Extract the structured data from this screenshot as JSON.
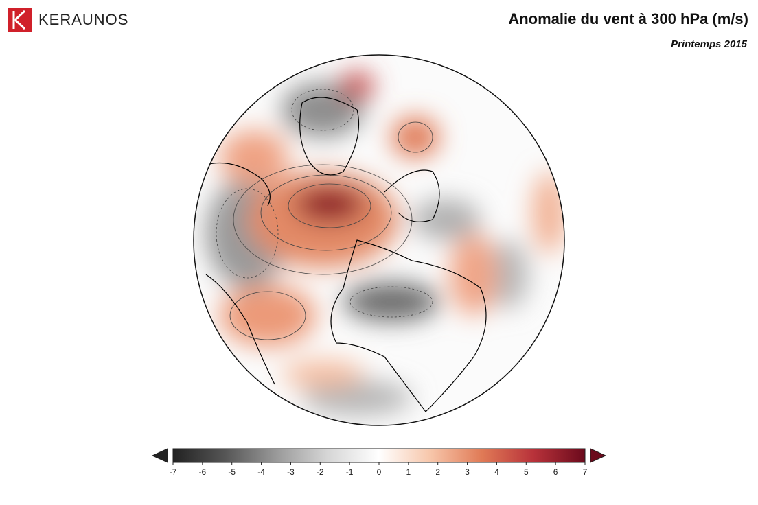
{
  "header": {
    "brand": "KERAUNOS",
    "title": "Anomalie du vent à 300 hPa (m/s)",
    "subtitle": "Printemps 2015"
  },
  "colorbar": {
    "range": [
      -7,
      7
    ],
    "ticks": [
      -7,
      -6,
      -5,
      -4,
      -3,
      -2,
      -1,
      0,
      1,
      2,
      3,
      4,
      5,
      6,
      7
    ],
    "colors": [
      "#222222",
      "#555555",
      "#999999",
      "#d6d6d6",
      "#ffffff",
      "#f7c6aa",
      "#e07a56",
      "#b8323a",
      "#6b0a1c"
    ]
  }
}
